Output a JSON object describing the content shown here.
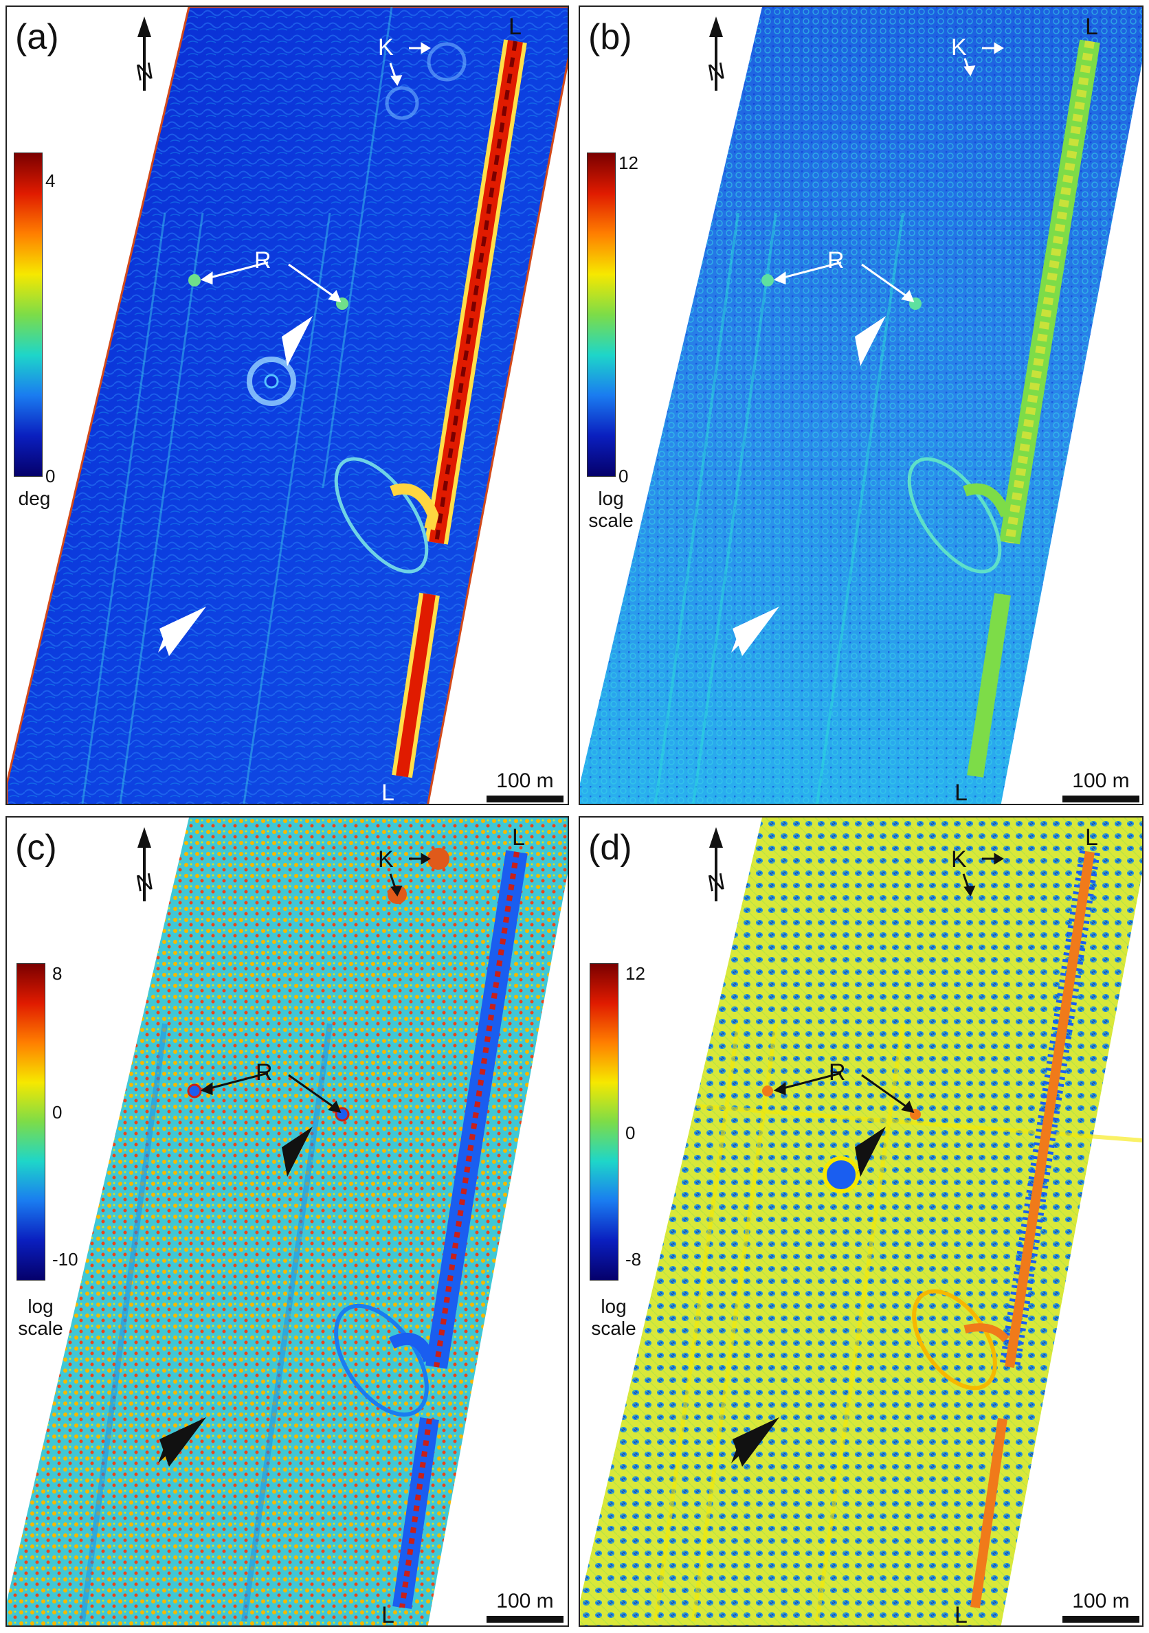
{
  "panels": [
    {
      "id": "a",
      "label": "(a)",
      "theme": "slope",
      "colorbar": {
        "max": "4",
        "min": "0",
        "unit": "deg",
        "stops": [
          "#7a0000",
          "#e01b00",
          "#ff7f00",
          "#f6e800",
          "#7ddc48",
          "#1ed6c9",
          "#1a7cf0",
          "#0a1fbf",
          "#05006b"
        ]
      },
      "scalebar": "100 m",
      "markers": {
        "K": "K",
        "R": "R",
        "L": "L"
      }
    },
    {
      "id": "b",
      "label": "(b)",
      "theme": "log1",
      "colorbar": {
        "max": "12",
        "min": "0",
        "unit": "log\nscale",
        "stops": [
          "#7a0000",
          "#e01b00",
          "#ff7f00",
          "#f6e800",
          "#7ddc48",
          "#1ed6c9",
          "#1a7cf0",
          "#0a1fbf",
          "#05006b"
        ]
      },
      "scalebar": "100 m",
      "markers": {
        "K": "K",
        "R": "R",
        "L": "L"
      }
    },
    {
      "id": "c",
      "label": "(c)",
      "theme": "log2",
      "colorbar": {
        "max": "8",
        "mid": "0",
        "min": "-10",
        "unit": "log\nscale",
        "stops": [
          "#7a0000",
          "#e01b00",
          "#ff7f00",
          "#f6e800",
          "#7ddc48",
          "#1ed6c9",
          "#1a7cf0",
          "#0a1fbf",
          "#05006b"
        ]
      },
      "scalebar": "100 m",
      "markers": {
        "K": "K",
        "R": "R",
        "L": "L"
      }
    },
    {
      "id": "d",
      "label": "(d)",
      "theme": "log3",
      "colorbar": {
        "max": "12",
        "mid": "0",
        "min": "-8",
        "unit": "log\nscale",
        "stops": [
          "#7a0000",
          "#e01b00",
          "#ff7f00",
          "#f6e800",
          "#7ddc48",
          "#1ed6c9",
          "#1a7cf0",
          "#0a1fbf",
          "#05006b"
        ]
      },
      "scalebar": "100 m",
      "markers": {
        "K": "K",
        "R": "R",
        "L": "L"
      }
    }
  ],
  "north_label": "N"
}
